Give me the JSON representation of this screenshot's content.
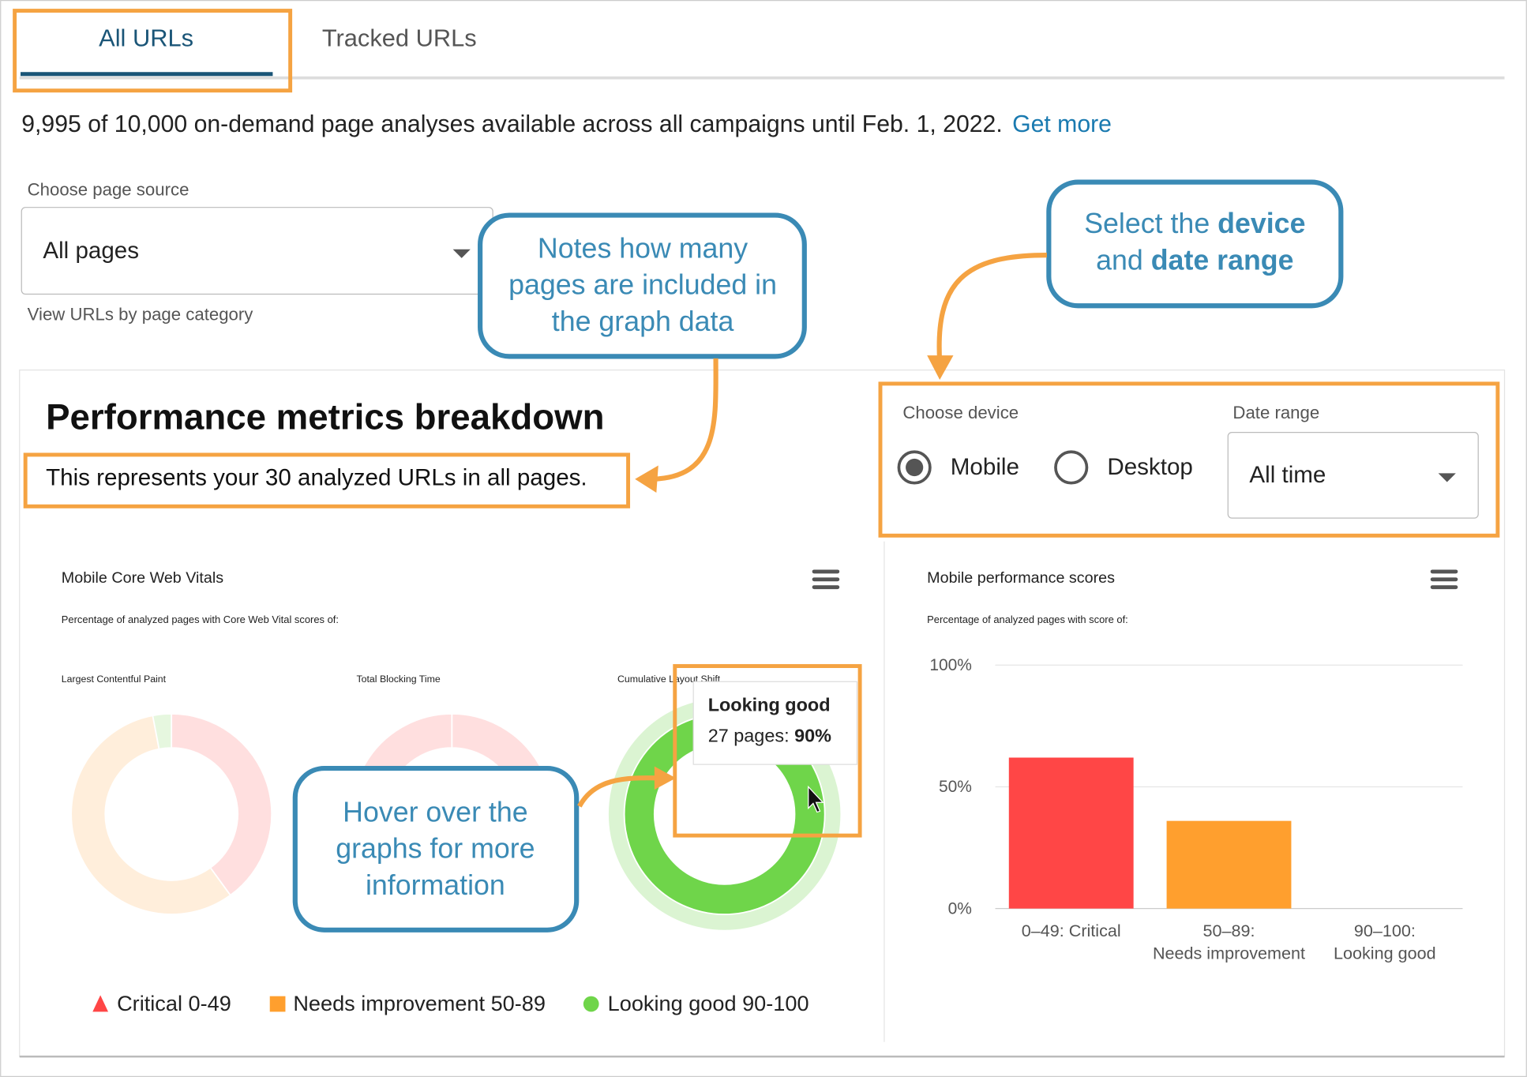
{
  "tabs": [
    "All URLs",
    "Tracked URLs"
  ],
  "notice": {
    "text": "9,995 of 10,000 on-demand page analyses available across all campaigns until Feb. 1, 2022.",
    "link": "Get more"
  },
  "page_source": {
    "label": "Choose page source",
    "value": "All pages",
    "help": "View URLs by page category"
  },
  "callouts": [
    {
      "lines": [
        "Notes how many",
        "pages are included in",
        "the graph data"
      ]
    },
    {
      "lines": [
        "Hover over the",
        "graphs for more",
        "information"
      ]
    },
    {
      "lines": [
        [
          "Select the ",
          "device"
        ],
        [
          "and ",
          "date range"
        ]
      ]
    }
  ],
  "panel": {
    "title": "Performance metrics breakdown",
    "subtitle": "This represents your 30 analyzed URLs in all pages.",
    "device_label": "Choose device",
    "devices": [
      "Mobile",
      "Desktop"
    ],
    "date_label": "Date range",
    "date_value": "All time"
  },
  "web_vitals": {
    "title": "Mobile Core Web Vitals",
    "subtitle": "Percentage of analyzed pages with Core Web Vital scores of:",
    "donuts": [
      {
        "label": "Largest Contentful Paint",
        "values": [
          40,
          57,
          3
        ]
      },
      {
        "label": "Total Blocking Time",
        "values": [
          100,
          0,
          0
        ]
      },
      {
        "label": "Cumulative Layout Shift",
        "values": [
          0,
          10,
          90
        ]
      }
    ],
    "colors": [
      "#ff4646",
      "#ff9f2e",
      "#6fd54a"
    ],
    "tooltip": {
      "title": "Looking good",
      "pages": "27 pages: ",
      "percent": "90%"
    },
    "legend": [
      "Critical 0-49",
      "Needs improvement 50-89",
      "Looking good 90-100"
    ]
  },
  "chart_data": {
    "type": "bar",
    "title": "Mobile performance scores",
    "subtitle": "Percentage of analyzed pages with score of:",
    "categories": [
      "0–49: Critical",
      "50–89: Needs improvement",
      "90–100: Looking good"
    ],
    "values": [
      62,
      36,
      0
    ],
    "colors": [
      "#ff4646",
      "#ff9f2e",
      "#6fd54a"
    ],
    "ylim": [
      0,
      100
    ],
    "yticks": [
      {
        "value": 0,
        "label": "0%"
      },
      {
        "value": 50,
        "label": "50%"
      },
      {
        "value": 100,
        "label": "100%"
      }
    ],
    "grid": true
  }
}
